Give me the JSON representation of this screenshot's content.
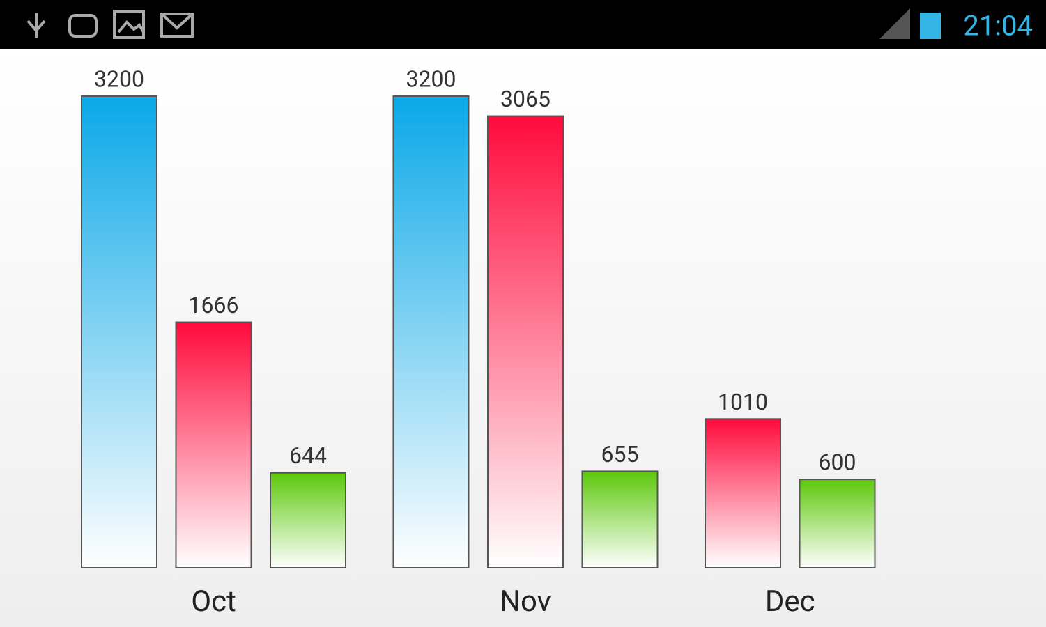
{
  "status_bar": {
    "time": "21:04"
  },
  "chart_data": {
    "type": "bar",
    "categories": [
      "Oct",
      "Nov",
      "Dec"
    ],
    "series": [
      {
        "color": "#0aa8e8",
        "values": [
          3200,
          3200,
          null
        ]
      },
      {
        "color": "#ff0a3c",
        "values": [
          1666,
          3065,
          1010
        ]
      },
      {
        "color": "#5cc80a",
        "values": [
          644,
          655,
          600
        ]
      }
    ]
  }
}
